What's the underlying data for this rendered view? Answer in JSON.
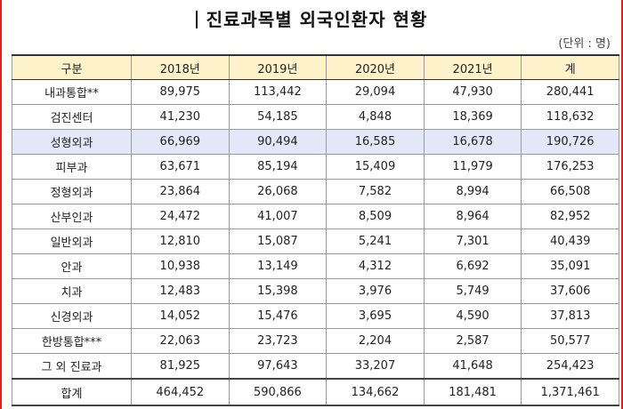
{
  "title": "진료과목별 외국인환자 현황",
  "unit": "(단위 : 명)",
  "table": {
    "headers": [
      "구분",
      "2018년",
      "2019년",
      "2020년",
      "2021년",
      "계"
    ],
    "rows": [
      [
        "내과통합**",
        "89,975",
        "113,442",
        "29,094",
        "47,930",
        "280,441"
      ],
      [
        "검진센터",
        "41,230",
        "54,185",
        "4,848",
        "18,369",
        "118,632"
      ],
      [
        "성형외과",
        "66,969",
        "90,494",
        "16,585",
        "16,678",
        "190,726"
      ],
      [
        "피부과",
        "63,671",
        "85,194",
        "15,409",
        "11,979",
        "176,253"
      ],
      [
        "정형외과",
        "23,864",
        "26,068",
        "7,582",
        "8,994",
        "66,508"
      ],
      [
        "산부인과",
        "24,472",
        "41,007",
        "8,509",
        "8,964",
        "82,952"
      ],
      [
        "일반외과",
        "12,810",
        "15,087",
        "5,241",
        "7,301",
        "40,439"
      ],
      [
        "안과",
        "10,938",
        "13,149",
        "4,312",
        "6,692",
        "35,091"
      ],
      [
        "치과",
        "12,483",
        "15,398",
        "3,976",
        "5,749",
        "37,606"
      ],
      [
        "신경외과",
        "14,052",
        "15,476",
        "3,695",
        "4,590",
        "37,813"
      ],
      [
        "한방통합***",
        "22,063",
        "23,723",
        "2,204",
        "2,587",
        "50,577"
      ],
      [
        "그 외 진료과",
        "81,925",
        "97,643",
        "33,207",
        "41,648",
        "254,423"
      ]
    ],
    "total": [
      "합계",
      "464,452",
      "590,866",
      "134,662",
      "181,481",
      "1,371,461"
    ],
    "highlight_row_label": "성형외과",
    "highlight_color": "#e3e8f8",
    "header_color": "#fdf2c9"
  }
}
